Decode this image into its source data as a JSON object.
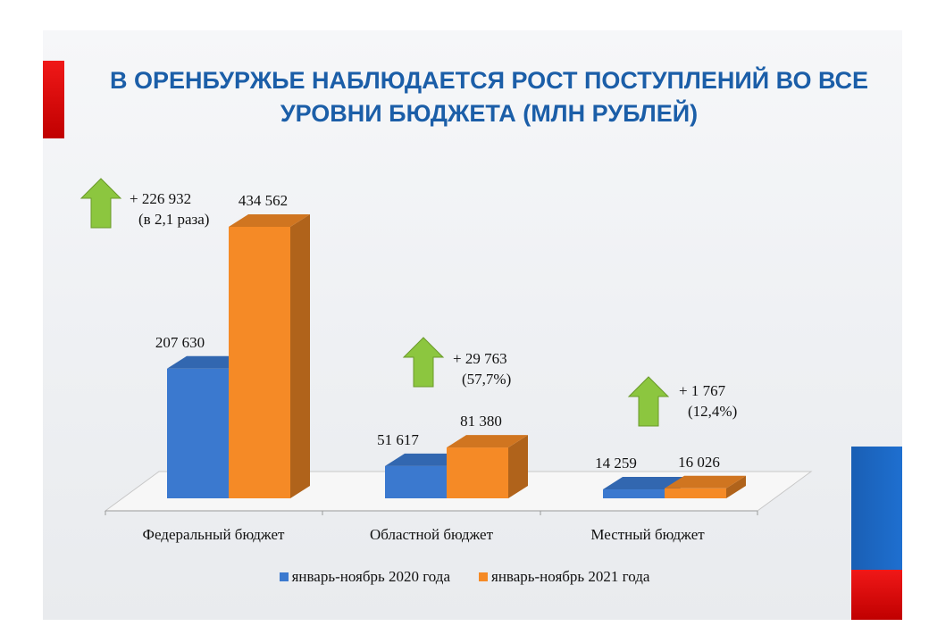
{
  "title": "В ОРЕНБУРЖЬЕ НАБЛЮДАЕТСЯ РОСТ ПОСТУПЛЕНИЙ ВО ВСЕ УРОВНИ БЮДЖЕТА (МЛН РУБЛЕЙ)",
  "colors": {
    "series1": "#3b79cf",
    "series2": "#f58a26",
    "arrow": "#8cc63f",
    "title": "#1b5ea8",
    "accent_red": "#e01010",
    "accent_blue": "#1a5fb4"
  },
  "annotations": [
    {
      "icon": "up-arrow-icon",
      "line1": "+ 226 932",
      "line2": "(в 2,1 раза)"
    },
    {
      "icon": "up-arrow-icon",
      "line1": "+ 29 763",
      "line2": "(57,7%)"
    },
    {
      "icon": "up-arrow-icon",
      "line1": "+ 1 767",
      "line2": "(12,4%)"
    }
  ],
  "chart_data": {
    "type": "bar",
    "style": "3d-clustered",
    "categories": [
      "Федеральный бюджет",
      "Областной бюджет",
      "Местный бюджет"
    ],
    "series": [
      {
        "name": "январь-ноябрь 2020 года",
        "values": [
          207630,
          51617,
          14259
        ],
        "labels": [
          "207 630",
          "51 617",
          "14 259"
        ]
      },
      {
        "name": "январь-ноябрь 2021 года",
        "values": [
          434562,
          81380,
          16026
        ],
        "labels": [
          "434 562",
          "81 380",
          "16 026"
        ]
      }
    ],
    "ylim": [
      0,
      434562
    ],
    "grid": false,
    "legend": "bottom"
  }
}
